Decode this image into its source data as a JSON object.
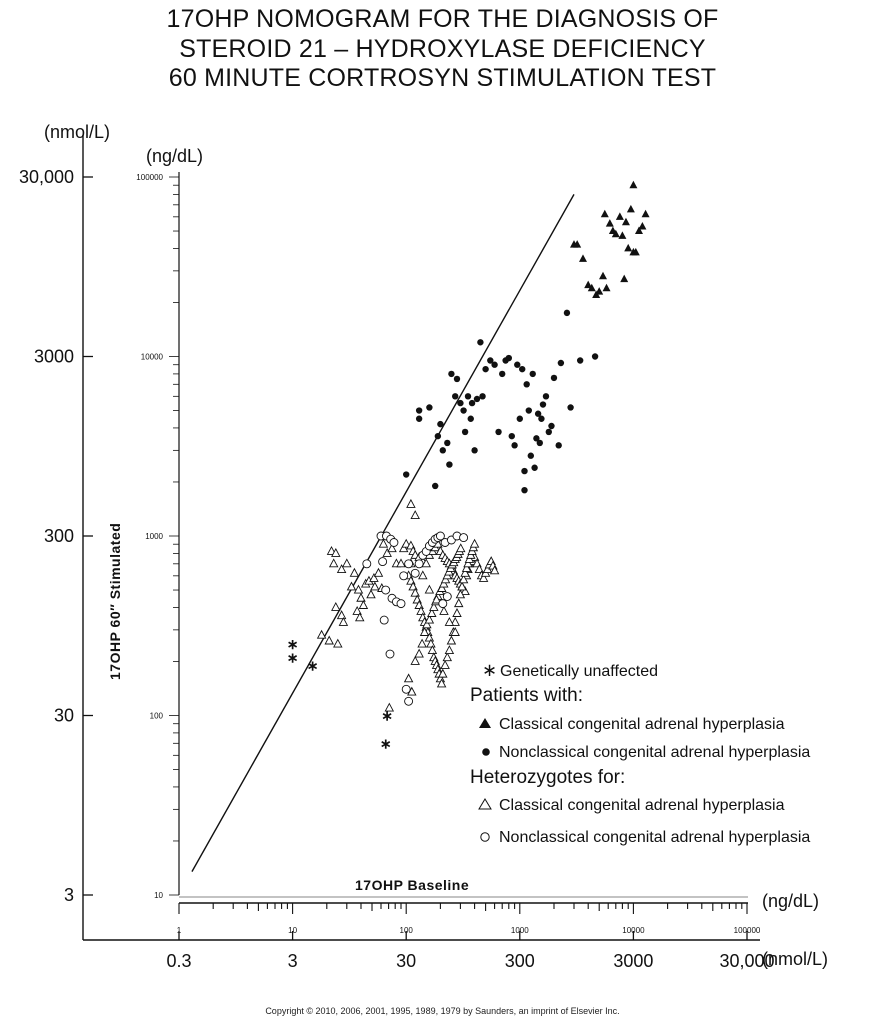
{
  "title_lines": [
    "17OHP NOMOGRAM FOR THE DIAGNOSIS OF",
    "STEROID 21 – HYDROXYLASE DEFICIENCY",
    "60 MINUTE CORTROSYN STIMULATION TEST"
  ],
  "copyright": "Copyright © 2010, 2006, 2001, 1995, 1989, 1979 by Saunders, an imprint of Elsevier Inc.",
  "chart_data": {
    "type": "scatter",
    "x_scale": "log",
    "y_scale": "log",
    "xlabel": "17OHP Baseline",
    "ylabel": "17OHP 60″ Stimulated",
    "x_units": [
      "(ng/dL)",
      "(nmol/L)"
    ],
    "y_units": [
      "(nmol/L)",
      "(ng/dL)"
    ],
    "xlim": [
      1,
      100000
    ],
    "ylim": [
      10,
      100000
    ],
    "x_ticks_ngdl": [
      "1",
      "10",
      "100",
      "1000",
      "10000",
      "100000"
    ],
    "x_ticks_nmol": [
      "0.3",
      "3",
      "30",
      "300",
      "3000",
      "30,000"
    ],
    "y_ticks_ngdl": [
      "10",
      "100",
      "1000",
      "10000",
      "100000"
    ],
    "y_ticks_nmol": [
      "3",
      "30",
      "300",
      "3000",
      "30,000"
    ],
    "diagnostic_line": [
      [
        1.3,
        13.5
      ],
      [
        3000,
        80000
      ]
    ],
    "legend": {
      "unaffected": "Genetically unaffected",
      "patients_header": "Patients with:",
      "patients_classical": "Classical congenital adrenal hyperplasia",
      "patients_nonclassical": "Nonclassical congenital adrenal hyperplasia",
      "het_header": "Heterozygotes for:",
      "het_classical": "Classical congenital adrenal hyperplasia",
      "het_nonclassical": "Nonclassical congenital adrenal hyperplasia"
    },
    "series": [
      {
        "name": "Genetically unaffected",
        "marker": "star",
        "points": [
          [
            10,
            250
          ],
          [
            10,
            210
          ],
          [
            15,
            190
          ],
          [
            68,
            100
          ],
          [
            66,
            70
          ]
        ]
      },
      {
        "name": "Patients with: Classical congenital adrenal hyperplasia",
        "marker": "filled-triangle",
        "points": [
          [
            3000,
            42000
          ],
          [
            3200,
            42000
          ],
          [
            3600,
            35000
          ],
          [
            4000,
            25000
          ],
          [
            4300,
            24000
          ],
          [
            4700,
            22000
          ],
          [
            5000,
            23000
          ],
          [
            5400,
            28000
          ],
          [
            5800,
            24000
          ],
          [
            5600,
            62000
          ],
          [
            6200,
            55000
          ],
          [
            6600,
            50000
          ],
          [
            7000,
            48000
          ],
          [
            7600,
            60000
          ],
          [
            8000,
            47000
          ],
          [
            8600,
            56000
          ],
          [
            9000,
            40000
          ],
          [
            9500,
            66000
          ],
          [
            10000,
            38000
          ],
          [
            10500,
            38000
          ],
          [
            11200,
            50000
          ],
          [
            12000,
            53000
          ],
          [
            12800,
            62000
          ],
          [
            10000,
            90000
          ],
          [
            8300,
            27000
          ]
        ]
      },
      {
        "name": "Patients with: Nonclassical congenital adrenal hyperplasia",
        "marker": "filled-circle",
        "points": [
          [
            100,
            2200
          ],
          [
            130,
            4500
          ],
          [
            130,
            5000
          ],
          [
            180,
            1900
          ],
          [
            160,
            5200
          ],
          [
            190,
            3600
          ],
          [
            200,
            4200
          ],
          [
            210,
            3000
          ],
          [
            230,
            3300
          ],
          [
            240,
            2500
          ],
          [
            250,
            8000
          ],
          [
            270,
            6000
          ],
          [
            280,
            7500
          ],
          [
            300,
            5500
          ],
          [
            320,
            5000
          ],
          [
            330,
            3800
          ],
          [
            350,
            6000
          ],
          [
            370,
            4500
          ],
          [
            380,
            5500
          ],
          [
            400,
            3000
          ],
          [
            420,
            5800
          ],
          [
            450,
            12000
          ],
          [
            470,
            6000
          ],
          [
            500,
            8500
          ],
          [
            550,
            9500
          ],
          [
            600,
            9000
          ],
          [
            650,
            3800
          ],
          [
            700,
            8000
          ],
          [
            750,
            9500
          ],
          [
            800,
            9800
          ],
          [
            850,
            3600
          ],
          [
            900,
            3200
          ],
          [
            950,
            9000
          ],
          [
            1000,
            4500
          ],
          [
            1050,
            8500
          ],
          [
            1100,
            2300
          ],
          [
            1150,
            7000
          ],
          [
            1200,
            5000
          ],
          [
            1250,
            2800
          ],
          [
            1300,
            8000
          ],
          [
            1350,
            2400
          ],
          [
            1400,
            3500
          ],
          [
            1450,
            4800
          ],
          [
            1500,
            3300
          ],
          [
            1550,
            4500
          ],
          [
            1600,
            5400
          ],
          [
            1700,
            6000
          ],
          [
            1800,
            3800
          ],
          [
            1900,
            4100
          ],
          [
            2000,
            7600
          ],
          [
            2200,
            3200
          ],
          [
            2300,
            9200
          ],
          [
            2600,
            17500
          ],
          [
            2800,
            5200
          ],
          [
            3400,
            9500
          ],
          [
            4600,
            10000
          ],
          [
            1100,
            1800
          ]
        ]
      },
      {
        "name": "Heterozygotes for: Classical congenital adrenal hyperplasia",
        "marker": "open-triangle",
        "points": [
          [
            22,
            820
          ],
          [
            24,
            800
          ],
          [
            23,
            700
          ],
          [
            27,
            650
          ],
          [
            30,
            700
          ],
          [
            33,
            520
          ],
          [
            35,
            620
          ],
          [
            38,
            500
          ],
          [
            40,
            450
          ],
          [
            44,
            540
          ],
          [
            47,
            560
          ],
          [
            52,
            580
          ],
          [
            57,
            620
          ],
          [
            63,
            900
          ],
          [
            68,
            800
          ],
          [
            75,
            850
          ],
          [
            82,
            700
          ],
          [
            90,
            700
          ],
          [
            24,
            400
          ],
          [
            27,
            360
          ],
          [
            28,
            330
          ],
          [
            37,
            380
          ],
          [
            39,
            350
          ],
          [
            42,
            410
          ],
          [
            18,
            280
          ],
          [
            21,
            260
          ],
          [
            25,
            250
          ],
          [
            49,
            470
          ],
          [
            53,
            520
          ],
          [
            61,
            510
          ],
          [
            95,
            850
          ],
          [
            100,
            900
          ],
          [
            110,
            880
          ],
          [
            115,
            820
          ],
          [
            120,
            780
          ],
          [
            130,
            760
          ],
          [
            140,
            720
          ],
          [
            150,
            700
          ],
          [
            160,
            780
          ],
          [
            170,
            820
          ],
          [
            180,
            860
          ],
          [
            190,
            900
          ],
          [
            200,
            820
          ],
          [
            210,
            780
          ],
          [
            220,
            750
          ],
          [
            230,
            720
          ],
          [
            240,
            700
          ],
          [
            250,
            680
          ],
          [
            260,
            640
          ],
          [
            270,
            600
          ],
          [
            280,
            580
          ],
          [
            290,
            560
          ],
          [
            300,
            540
          ],
          [
            310,
            520
          ],
          [
            320,
            500
          ],
          [
            330,
            490
          ],
          [
            340,
            600
          ],
          [
            350,
            650
          ],
          [
            360,
            700
          ],
          [
            380,
            720
          ],
          [
            400,
            760
          ],
          [
            420,
            700
          ],
          [
            440,
            650
          ],
          [
            460,
            600
          ],
          [
            480,
            580
          ],
          [
            500,
            620
          ],
          [
            520,
            650
          ],
          [
            540,
            690
          ],
          [
            560,
            720
          ],
          [
            580,
            680
          ],
          [
            600,
            640
          ],
          [
            105,
            600
          ],
          [
            110,
            560
          ],
          [
            115,
            520
          ],
          [
            120,
            480
          ],
          [
            125,
            440
          ],
          [
            130,
            410
          ],
          [
            135,
            380
          ],
          [
            140,
            350
          ],
          [
            145,
            330
          ],
          [
            150,
            310
          ],
          [
            155,
            290
          ],
          [
            160,
            270
          ],
          [
            165,
            250
          ],
          [
            170,
            230
          ],
          [
            175,
            210
          ],
          [
            180,
            200
          ],
          [
            185,
            190
          ],
          [
            190,
            180
          ],
          [
            195,
            170
          ],
          [
            200,
            160
          ],
          [
            205,
            150
          ],
          [
            210,
            170
          ],
          [
            220,
            190
          ],
          [
            230,
            210
          ],
          [
            240,
            230
          ],
          [
            250,
            260
          ],
          [
            260,
            290
          ],
          [
            270,
            330
          ],
          [
            280,
            370
          ],
          [
            290,
            420
          ],
          [
            300,
            470
          ],
          [
            310,
            520
          ],
          [
            320,
            570
          ],
          [
            330,
            620
          ],
          [
            340,
            660
          ],
          [
            350,
            700
          ],
          [
            360,
            740
          ],
          [
            370,
            780
          ],
          [
            380,
            820
          ],
          [
            390,
            860
          ],
          [
            400,
            900
          ],
          [
            105,
            160
          ],
          [
            112,
            135
          ],
          [
            120,
            200
          ],
          [
            130,
            220
          ],
          [
            138,
            250
          ],
          [
            145,
            290
          ],
          [
            152,
            320
          ],
          [
            160,
            340
          ],
          [
            168,
            370
          ],
          [
            175,
            400
          ],
          [
            182,
            430
          ],
          [
            190,
            460
          ],
          [
            198,
            490
          ],
          [
            206,
            510
          ],
          [
            214,
            540
          ],
          [
            222,
            570
          ],
          [
            230,
            600
          ],
          [
            238,
            630
          ],
          [
            246,
            660
          ],
          [
            254,
            690
          ],
          [
            262,
            710
          ],
          [
            270,
            740
          ],
          [
            278,
            760
          ],
          [
            286,
            790
          ],
          [
            294,
            820
          ],
          [
            302,
            850
          ],
          [
            110,
            1500
          ],
          [
            120,
            1300
          ],
          [
            71,
            110
          ],
          [
            110,
            700
          ],
          [
            140,
            600
          ],
          [
            160,
            500
          ],
          [
            185,
            440
          ],
          [
            215,
            380
          ],
          [
            240,
            330
          ],
          [
            270,
            290
          ]
        ]
      },
      {
        "name": "Heterozygotes for: Nonclassical congenital adrenal hyperplasia",
        "marker": "open-circle",
        "points": [
          [
            60,
            1000
          ],
          [
            67,
            1000
          ],
          [
            73,
            960
          ],
          [
            78,
            920
          ],
          [
            45,
            700
          ],
          [
            62,
            720
          ],
          [
            95,
            600
          ],
          [
            105,
            700
          ],
          [
            66,
            500
          ],
          [
            75,
            450
          ],
          [
            82,
            430
          ],
          [
            90,
            420
          ],
          [
            120,
            620
          ],
          [
            130,
            700
          ],
          [
            140,
            780
          ],
          [
            150,
            820
          ],
          [
            160,
            880
          ],
          [
            170,
            920
          ],
          [
            180,
            960
          ],
          [
            190,
            980
          ],
          [
            200,
            1000
          ],
          [
            220,
            920
          ],
          [
            250,
            950
          ],
          [
            280,
            1000
          ],
          [
            320,
            980
          ],
          [
            210,
            420
          ],
          [
            230,
            460
          ],
          [
            64,
            340
          ],
          [
            72,
            220
          ],
          [
            100,
            140
          ],
          [
            105,
            120
          ]
        ]
      }
    ]
  }
}
